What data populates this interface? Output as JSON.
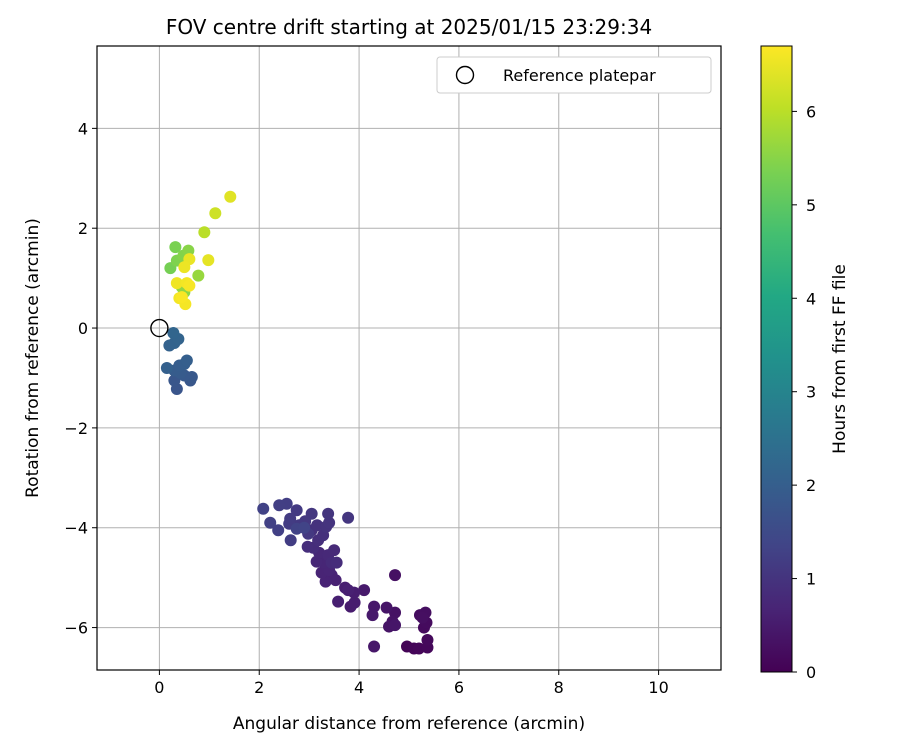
{
  "chart_data": {
    "type": "scatter",
    "title": "FOV centre drift starting at 2025/01/15 23:29:34",
    "xlabel": "Angular distance from reference (arcmin)",
    "ylabel": "Rotation from reference (arcmin)",
    "xlim": [
      -1.25,
      11.25
    ],
    "ylim": [
      -6.85,
      5.65
    ],
    "xticks": [
      0,
      2,
      4,
      6,
      8,
      10
    ],
    "yticks": [
      -6,
      -4,
      -2,
      0,
      2,
      4
    ],
    "grid": true,
    "legend": {
      "position": "top-right",
      "entries": [
        {
          "label": "Reference platepar",
          "marker": "open-circle"
        }
      ]
    },
    "reference_point": {
      "x": 0,
      "y": 0
    },
    "colorbar": {
      "label": "Hours from first FF file",
      "min": 0,
      "max": 6.7,
      "ticks": [
        0,
        1,
        2,
        3,
        4,
        5,
        6
      ],
      "colormap": "viridis"
    },
    "points": [
      {
        "x": 4.96,
        "y": -6.38,
        "c": 0.05
      },
      {
        "x": 5.1,
        "y": -6.42,
        "c": 0.08
      },
      {
        "x": 5.2,
        "y": -6.42,
        "c": 0.1
      },
      {
        "x": 5.37,
        "y": -6.4,
        "c": 0.12
      },
      {
        "x": 5.37,
        "y": -6.25,
        "c": 0.15
      },
      {
        "x": 5.3,
        "y": -6.0,
        "c": 0.18
      },
      {
        "x": 5.35,
        "y": -5.9,
        "c": 0.2
      },
      {
        "x": 5.22,
        "y": -5.75,
        "c": 0.22
      },
      {
        "x": 5.33,
        "y": -5.7,
        "c": 0.25
      },
      {
        "x": 5.27,
        "y": -5.8,
        "c": 0.27
      },
      {
        "x": 4.72,
        "y": -4.95,
        "c": 0.3
      },
      {
        "x": 4.72,
        "y": -5.7,
        "c": 0.32
      },
      {
        "x": 4.67,
        "y": -5.88,
        "c": 0.34
      },
      {
        "x": 4.6,
        "y": -5.98,
        "c": 0.36
      },
      {
        "x": 4.55,
        "y": -5.6,
        "c": 0.38
      },
      {
        "x": 4.72,
        "y": -5.95,
        "c": 0.4
      },
      {
        "x": 4.3,
        "y": -6.38,
        "c": 0.42
      },
      {
        "x": 4.3,
        "y": -5.58,
        "c": 0.44
      },
      {
        "x": 4.27,
        "y": -5.75,
        "c": 0.46
      },
      {
        "x": 4.1,
        "y": -5.25,
        "c": 0.48
      },
      {
        "x": 3.83,
        "y": -5.58,
        "c": 0.5
      },
      {
        "x": 3.91,
        "y": -5.5,
        "c": 0.52
      },
      {
        "x": 3.9,
        "y": -5.3,
        "c": 0.54
      },
      {
        "x": 3.72,
        "y": -5.2,
        "c": 0.56
      },
      {
        "x": 3.58,
        "y": -5.48,
        "c": 0.58
      },
      {
        "x": 3.78,
        "y": -5.25,
        "c": 0.6
      },
      {
        "x": 3.53,
        "y": -5.05,
        "c": 0.62
      },
      {
        "x": 3.45,
        "y": -4.95,
        "c": 0.64
      },
      {
        "x": 3.33,
        "y": -5.08,
        "c": 0.66
      },
      {
        "x": 3.25,
        "y": -4.9,
        "c": 0.68
      },
      {
        "x": 3.4,
        "y": -4.85,
        "c": 0.7
      },
      {
        "x": 3.3,
        "y": -4.7,
        "c": 0.72
      },
      {
        "x": 3.15,
        "y": -4.68,
        "c": 0.74
      },
      {
        "x": 3.2,
        "y": -4.5,
        "c": 0.76
      },
      {
        "x": 3.38,
        "y": -4.55,
        "c": 0.78
      },
      {
        "x": 3.5,
        "y": -4.45,
        "c": 0.8
      },
      {
        "x": 3.45,
        "y": -4.7,
        "c": 0.82
      },
      {
        "x": 3.55,
        "y": -4.7,
        "c": 0.84
      },
      {
        "x": 3.08,
        "y": -4.4,
        "c": 0.86
      },
      {
        "x": 2.97,
        "y": -4.38,
        "c": 0.88
      },
      {
        "x": 3.18,
        "y": -4.25,
        "c": 0.9
      },
      {
        "x": 3.28,
        "y": -4.15,
        "c": 0.92
      },
      {
        "x": 3.05,
        "y": -4.05,
        "c": 0.94
      },
      {
        "x": 3.16,
        "y": -3.95,
        "c": 0.96
      },
      {
        "x": 3.34,
        "y": -3.98,
        "c": 0.98
      },
      {
        "x": 3.4,
        "y": -3.9,
        "c": 1.0
      },
      {
        "x": 3.38,
        "y": -3.72,
        "c": 1.02
      },
      {
        "x": 3.78,
        "y": -3.8,
        "c": 1.04
      },
      {
        "x": 3.05,
        "y": -3.72,
        "c": 1.06
      },
      {
        "x": 2.92,
        "y": -3.87,
        "c": 1.08
      },
      {
        "x": 2.98,
        "y": -4.12,
        "c": 1.1
      },
      {
        "x": 2.8,
        "y": -3.95,
        "c": 1.12
      },
      {
        "x": 2.75,
        "y": -3.65,
        "c": 1.14
      },
      {
        "x": 2.62,
        "y": -3.82,
        "c": 1.16
      },
      {
        "x": 2.6,
        "y": -3.92,
        "c": 1.18
      },
      {
        "x": 2.63,
        "y": -4.25,
        "c": 1.2
      },
      {
        "x": 2.55,
        "y": -3.52,
        "c": 1.22
      },
      {
        "x": 2.4,
        "y": -3.55,
        "c": 1.24
      },
      {
        "x": 2.38,
        "y": -4.05,
        "c": 1.26
      },
      {
        "x": 2.22,
        "y": -3.9,
        "c": 1.28
      },
      {
        "x": 2.08,
        "y": -3.62,
        "c": 1.3
      },
      {
        "x": 2.75,
        "y": -4.02,
        "c": 1.32
      },
      {
        "x": 2.9,
        "y": -4.0,
        "c": 1.34
      },
      {
        "x": 0.35,
        "y": -1.22,
        "c": 1.75
      },
      {
        "x": 0.3,
        "y": -1.05,
        "c": 1.78
      },
      {
        "x": 0.62,
        "y": -1.05,
        "c": 1.81
      },
      {
        "x": 0.65,
        "y": -0.98,
        "c": 1.84
      },
      {
        "x": 0.5,
        "y": -0.95,
        "c": 1.87
      },
      {
        "x": 0.42,
        "y": -0.9,
        "c": 1.9
      },
      {
        "x": 0.3,
        "y": -0.85,
        "c": 1.93
      },
      {
        "x": 0.4,
        "y": -0.75,
        "c": 1.96
      },
      {
        "x": 0.5,
        "y": -0.72,
        "c": 1.99
      },
      {
        "x": 0.55,
        "y": -0.65,
        "c": 2.02
      },
      {
        "x": 0.15,
        "y": -0.8,
        "c": 2.05
      },
      {
        "x": 0.2,
        "y": -0.35,
        "c": 2.08
      },
      {
        "x": 0.3,
        "y": -0.3,
        "c": 2.11
      },
      {
        "x": 0.38,
        "y": -0.22,
        "c": 2.14
      },
      {
        "x": 0.28,
        "y": -0.1,
        "c": 2.17
      },
      {
        "x": 0.22,
        "y": 1.2,
        "c": 5.3
      },
      {
        "x": 0.32,
        "y": 1.62,
        "c": 5.35
      },
      {
        "x": 0.35,
        "y": 1.35,
        "c": 5.4
      },
      {
        "x": 0.48,
        "y": 1.45,
        "c": 5.45
      },
      {
        "x": 0.58,
        "y": 1.55,
        "c": 5.5
      },
      {
        "x": 0.5,
        "y": 0.72,
        "c": 5.55
      },
      {
        "x": 0.45,
        "y": 0.82,
        "c": 5.6
      },
      {
        "x": 0.78,
        "y": 1.05,
        "c": 5.65
      },
      {
        "x": 0.9,
        "y": 1.92,
        "c": 6.0
      },
      {
        "x": 1.12,
        "y": 2.3,
        "c": 6.2
      },
      {
        "x": 1.42,
        "y": 2.63,
        "c": 6.4
      },
      {
        "x": 0.98,
        "y": 1.36,
        "c": 6.45
      },
      {
        "x": 0.6,
        "y": 1.38,
        "c": 6.5
      },
      {
        "x": 0.5,
        "y": 1.22,
        "c": 6.52
      },
      {
        "x": 0.35,
        "y": 0.9,
        "c": 6.55
      },
      {
        "x": 0.55,
        "y": 0.9,
        "c": 6.58
      },
      {
        "x": 0.4,
        "y": 0.6,
        "c": 6.6
      },
      {
        "x": 0.52,
        "y": 0.48,
        "c": 6.62
      },
      {
        "x": 0.6,
        "y": 0.85,
        "c": 6.64
      },
      {
        "x": 0.45,
        "y": 0.62,
        "c": 6.66
      }
    ]
  }
}
